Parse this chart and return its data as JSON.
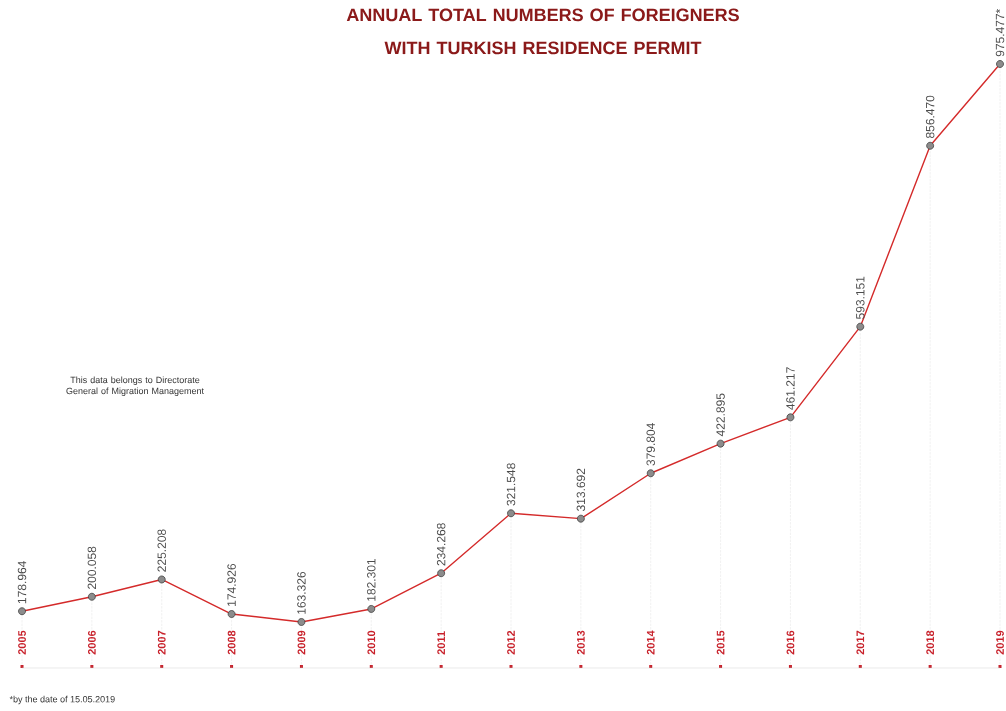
{
  "chart_data": {
    "type": "line",
    "title": "ANNUAL TOTAL NUMBERS OF FOREIGNERS\nWITH TURKISH RESIDENCE PERMIT",
    "categories": [
      "2005",
      "2006",
      "2007",
      "2008",
      "2009",
      "2010",
      "2011",
      "2012",
      "2013",
      "2014",
      "2015",
      "2016",
      "2017",
      "2018",
      "2019"
    ],
    "series": [
      {
        "color": "#d42a2a",
        "values": [
          178964,
          200058,
          225208,
          174926,
          163326,
          182301,
          234268,
          321548,
          313692,
          379804,
          422895,
          461217,
          593151,
          856470,
          975477
        ],
        "value_labels": [
          "178.964",
          "200.058",
          "225.208",
          "174.926",
          "163.326",
          "182.301",
          "234.268",
          "321.548",
          "313.692",
          "379.804",
          "422.895",
          "461.217",
          "593.151",
          "856.470",
          "975.477*"
        ]
      }
    ],
    "marker": "circle",
    "line_style": "solid",
    "grid": "x",
    "annotations": [
      "This data belongs to Directorate\nGeneral of Migration Management",
      "*by the date of 15.05.2019"
    ]
  }
}
